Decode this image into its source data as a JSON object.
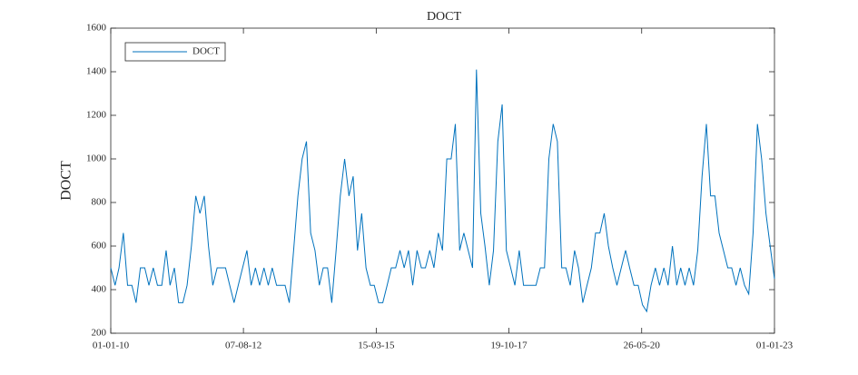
{
  "chart_data": {
    "type": "line",
    "title": "DOCT",
    "y_label": "DOCT",
    "x": [
      "2010-01-01",
      "2010-02-01",
      "2010-03-01",
      "2010-04-01",
      "2010-05-01",
      "2010-06-01",
      "2010-07-01",
      "2010-08-01",
      "2010-09-01",
      "2010-10-01",
      "2010-11-01",
      "2010-12-01",
      "2011-01-01",
      "2011-02-01",
      "2011-03-01",
      "2011-04-01",
      "2011-05-01",
      "2011-06-01",
      "2011-07-01",
      "2011-08-01",
      "2011-09-01",
      "2011-10-01",
      "2011-11-01",
      "2011-12-01",
      "2012-01-01",
      "2012-02-01",
      "2012-03-01",
      "2012-04-01",
      "2012-05-01",
      "2012-06-01",
      "2012-07-01",
      "2012-08-01",
      "2012-09-01",
      "2012-10-01",
      "2012-11-01",
      "2012-12-01",
      "2013-01-01",
      "2013-02-01",
      "2013-03-01",
      "2013-04-01",
      "2013-05-01",
      "2013-06-01",
      "2013-07-01",
      "2013-08-01",
      "2013-09-01",
      "2013-10-01",
      "2013-11-01",
      "2013-12-01",
      "2014-01-01",
      "2014-02-01",
      "2014-03-01",
      "2014-04-01",
      "2014-05-01",
      "2014-06-01",
      "2014-07-01",
      "2014-08-01",
      "2014-09-01",
      "2014-10-01",
      "2014-11-01",
      "2014-12-01",
      "2015-01-01",
      "2015-02-01",
      "2015-03-01",
      "2015-04-01",
      "2015-05-01",
      "2015-06-01",
      "2015-07-01",
      "2015-08-01",
      "2015-09-01",
      "2015-10-01",
      "2015-11-01",
      "2015-12-01",
      "2016-01-01",
      "2016-02-01",
      "2016-03-01",
      "2016-04-01",
      "2016-05-01",
      "2016-06-01",
      "2016-07-01",
      "2016-08-01",
      "2016-09-01",
      "2016-10-01",
      "2016-11-01",
      "2016-12-01",
      "2017-01-01",
      "2017-02-01",
      "2017-03-01",
      "2017-04-01",
      "2017-05-01",
      "2017-06-01",
      "2017-07-01",
      "2017-08-01",
      "2017-09-01",
      "2017-10-01",
      "2017-11-01",
      "2017-12-01",
      "2018-01-01",
      "2018-02-01",
      "2018-03-01",
      "2018-04-01",
      "2018-05-01",
      "2018-06-01",
      "2018-07-01",
      "2018-08-01",
      "2018-09-01",
      "2018-10-01",
      "2018-11-01",
      "2018-12-01",
      "2019-01-01",
      "2019-02-01",
      "2019-03-01",
      "2019-04-01",
      "2019-05-01",
      "2019-06-01",
      "2019-07-01",
      "2019-08-01",
      "2019-09-01",
      "2019-10-01",
      "2019-11-01",
      "2019-12-01",
      "2020-01-01",
      "2020-02-01",
      "2020-03-01",
      "2020-04-01",
      "2020-05-01",
      "2020-06-01",
      "2020-07-01",
      "2020-08-01",
      "2020-09-01",
      "2020-10-01",
      "2020-11-01",
      "2020-12-01",
      "2021-01-01",
      "2021-02-01",
      "2021-03-01",
      "2021-04-01",
      "2021-05-01",
      "2021-06-01",
      "2021-07-01",
      "2021-08-01",
      "2021-09-01",
      "2021-10-01",
      "2021-11-01",
      "2021-12-01",
      "2022-01-01",
      "2022-02-01",
      "2022-03-01",
      "2022-04-01",
      "2022-05-01",
      "2022-06-01",
      "2022-07-01",
      "2022-08-01",
      "2022-09-01",
      "2022-10-01",
      "2022-11-01",
      "2022-12-01",
      "2023-01-01"
    ],
    "series": [
      {
        "name": "DOCT",
        "color": "#0072bd",
        "values": [
          500,
          420,
          500,
          660,
          420,
          420,
          340,
          500,
          500,
          420,
          500,
          420,
          420,
          580,
          420,
          500,
          340,
          340,
          420,
          600,
          830,
          750,
          830,
          600,
          420,
          500,
          500,
          500,
          420,
          340,
          420,
          500,
          580,
          420,
          500,
          420,
          500,
          420,
          500,
          420,
          420,
          420,
          340,
          580,
          830,
          1000,
          1080,
          660,
          580,
          420,
          500,
          500,
          340,
          580,
          830,
          1000,
          830,
          920,
          580,
          750,
          500,
          420,
          420,
          340,
          340,
          420,
          500,
          500,
          580,
          500,
          580,
          420,
          580,
          500,
          500,
          580,
          500,
          660,
          580,
          1000,
          1000,
          1160,
          580,
          660,
          580,
          500,
          1410,
          750,
          600,
          420,
          580,
          1080,
          1250,
          580,
          500,
          420,
          580,
          420,
          420,
          420,
          420,
          500,
          500,
          1000,
          1160,
          1080,
          500,
          500,
          420,
          580,
          500,
          340,
          420,
          500,
          660,
          660,
          750,
          600,
          500,
          420,
          500,
          580,
          500,
          420,
          420,
          330,
          300,
          420,
          500,
          420,
          500,
          420,
          600,
          420,
          500,
          420,
          500,
          420,
          580,
          920,
          1160,
          830,
          830,
          660,
          580,
          500,
          500,
          420,
          500,
          420,
          380,
          660,
          1160,
          1000,
          750,
          600,
          450
        ]
      }
    ],
    "xlim": [
      "2010-01-01",
      "2023-01-01"
    ],
    "xticks": [
      {
        "value": "2010-01-01",
        "label": "01-01-10"
      },
      {
        "value": "2012-08-07",
        "label": "07-08-12"
      },
      {
        "value": "2015-03-15",
        "label": "15-03-15"
      },
      {
        "value": "2017-10-19",
        "label": "19-10-17"
      },
      {
        "value": "2020-05-26",
        "label": "26-05-20"
      },
      {
        "value": "2023-01-01",
        "label": "01-01-23"
      }
    ],
    "ylim": [
      200,
      1600
    ],
    "yticks": [
      200,
      400,
      600,
      800,
      1000,
      1200,
      1400,
      1600
    ],
    "legend": "upper left"
  }
}
